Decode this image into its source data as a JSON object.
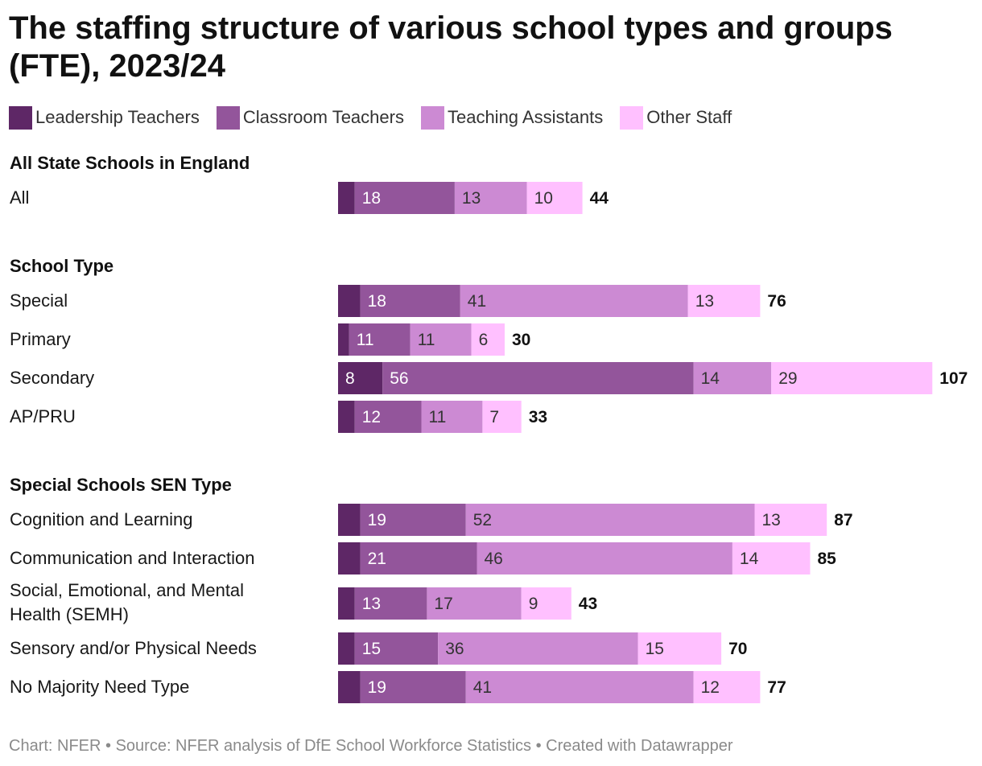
{
  "title": "The staffing structure of various school types and groups (FTE), 2023/24",
  "footer": "Chart: NFER • Source: NFER analysis of DfE School Workforce Statistics • Created with Datawrapper",
  "colors": {
    "leadership": "#5e2766",
    "classroom": "#93559b",
    "assistants": "#cc8ad3",
    "other": "#ffc0ff",
    "label_dark": "#ffffff",
    "label_light": "#333333",
    "text": "#181818"
  },
  "chart_data": {
    "type": "bar",
    "orientation": "horizontal",
    "stacked": true,
    "legend_position": "top-left",
    "grid": false,
    "series": [
      {
        "name": "Leadership Teachers",
        "color": "#5e2766"
      },
      {
        "name": "Classroom Teachers",
        "color": "#93559b"
      },
      {
        "name": "Teaching Assistants",
        "color": "#cc8ad3"
      },
      {
        "name": "Other Staff",
        "color": "#ffc0ff"
      }
    ],
    "groups": [
      {
        "name": "All State Schools in England",
        "rows": [
          {
            "label": "All",
            "values": [
              3,
              18,
              13,
              10
            ],
            "total": 44
          }
        ]
      },
      {
        "name": "School Type",
        "rows": [
          {
            "label": "Special",
            "values": [
              4,
              18,
              41,
              13
            ],
            "total": 76
          },
          {
            "label": "Primary",
            "values": [
              2,
              11,
              11,
              6
            ],
            "total": 30
          },
          {
            "label": "Secondary",
            "values": [
              8,
              56,
              14,
              29
            ],
            "total": 107
          },
          {
            "label": "AP/PRU",
            "values": [
              3,
              12,
              11,
              7
            ],
            "total": 33
          }
        ]
      },
      {
        "name": "Special Schools SEN Type",
        "rows": [
          {
            "label": "Cognition and Learning",
            "values": [
              4,
              19,
              52,
              13
            ],
            "total": 87
          },
          {
            "label": "Communication and Interaction",
            "values": [
              4,
              21,
              46,
              14
            ],
            "total": 85
          },
          {
            "label": "Social, Emotional, and Mental Health (SEMH)",
            "values": [
              3,
              13,
              17,
              9
            ],
            "total": 43
          },
          {
            "label": "Sensory and/or Physical Needs",
            "values": [
              3,
              15,
              36,
              15
            ],
            "total": 70
          },
          {
            "label": "No Majority Need Type",
            "values": [
              4,
              19,
              41,
              12
            ],
            "total": 77
          }
        ]
      }
    ],
    "shown_segment_labels": "values of at least 5"
  }
}
